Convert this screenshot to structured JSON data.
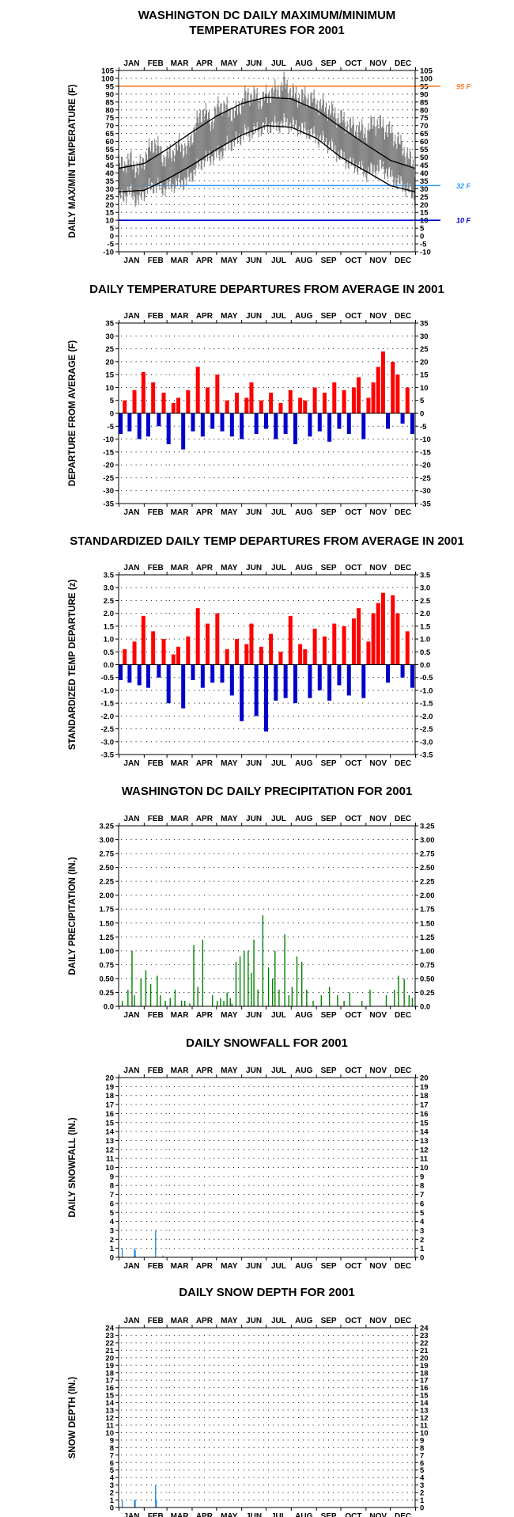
{
  "months": [
    "JAN",
    "FEB",
    "MAR",
    "APR",
    "MAY",
    "JUN",
    "JUL",
    "AUG",
    "SEP",
    "OCT",
    "NOV",
    "DEC"
  ],
  "colors": {
    "ref95": "#ff7f27",
    "ref32": "#3399ff",
    "ref10": "#0000cc",
    "temp_band": "#808080",
    "avg_line": "#000000",
    "positive": "#ff0000",
    "negative": "#0000cc",
    "precip": "#008000",
    "snow": "#2b8fe0"
  },
  "chart_data": [
    {
      "id": "temps",
      "type": "area",
      "title": [
        "WASHINGTON DC DAILY MAXIMUM/MINIMUM",
        "TEMPERATURES FOR 2001"
      ],
      "ylabel": "DAILY MAX/MIN TEMPERATURE (F)",
      "ylim": [
        -10,
        105
      ],
      "yticks": [
        -10,
        -5,
        0,
        5,
        10,
        15,
        20,
        25,
        30,
        35,
        40,
        45,
        50,
        55,
        60,
        65,
        70,
        75,
        80,
        85,
        90,
        95,
        100,
        105
      ],
      "grid": true,
      "reference_lines": [
        {
          "value": 95,
          "label": "95 F",
          "color_key": "ref95"
        },
        {
          "value": 32,
          "label": "32 F",
          "color_key": "ref32"
        },
        {
          "value": 10,
          "label": "10 F",
          "color_key": "ref10"
        }
      ],
      "normal_high": {
        "name": "",
        "day": [
          1,
          32,
          60,
          91,
          121,
          152,
          182,
          213,
          244,
          274,
          305,
          335,
          365
        ],
        "values": [
          43,
          46,
          55,
          66,
          76,
          84,
          88,
          87,
          80,
          69,
          58,
          48,
          43
        ]
      },
      "normal_low": {
        "name": "",
        "day": [
          1,
          32,
          60,
          91,
          121,
          152,
          182,
          213,
          244,
          274,
          305,
          335,
          365
        ],
        "values": [
          28,
          29,
          36,
          45,
          55,
          64,
          70,
          69,
          62,
          50,
          41,
          32,
          28
        ]
      },
      "daily_high_approx": {
        "day": [
          5,
          15,
          25,
          35,
          45,
          55,
          65,
          75,
          85,
          95,
          105,
          115,
          125,
          135,
          145,
          155,
          165,
          175,
          185,
          195,
          205,
          215,
          225,
          235,
          245,
          255,
          265,
          275,
          285,
          295,
          305,
          315,
          325,
          335,
          345,
          355,
          364
        ],
        "values": [
          45,
          48,
          42,
          52,
          60,
          50,
          52,
          58,
          55,
          70,
          80,
          72,
          84,
          80,
          78,
          88,
          90,
          86,
          90,
          92,
          97,
          90,
          88,
          88,
          84,
          82,
          78,
          74,
          70,
          68,
          66,
          72,
          70,
          66,
          60,
          52,
          45
        ]
      },
      "daily_low_approx": {
        "day": [
          5,
          15,
          25,
          35,
          45,
          55,
          65,
          75,
          85,
          95,
          105,
          115,
          125,
          135,
          145,
          155,
          165,
          175,
          185,
          195,
          205,
          215,
          225,
          235,
          245,
          255,
          265,
          275,
          285,
          295,
          305,
          315,
          325,
          335,
          345,
          355,
          364
        ],
        "values": [
          25,
          28,
          22,
          30,
          32,
          30,
          32,
          34,
          35,
          42,
          48,
          50,
          52,
          58,
          60,
          65,
          66,
          68,
          70,
          70,
          72,
          70,
          68,
          66,
          62,
          60,
          55,
          50,
          46,
          44,
          40,
          42,
          44,
          38,
          34,
          30,
          25
        ]
      }
    },
    {
      "id": "departures",
      "type": "bar",
      "title": [
        "DAILY TEMPERATURE DEPARTURES FROM AVERAGE IN 2001"
      ],
      "ylabel": "DEPARTURE FROM AVERAGE (F)",
      "ylim": [
        -35,
        35
      ],
      "yticks": [
        -35,
        -30,
        -25,
        -20,
        -15,
        -10,
        -5,
        0,
        5,
        10,
        15,
        20,
        25,
        30,
        35
      ],
      "grid": true,
      "day": [
        3,
        8,
        14,
        20,
        26,
        31,
        37,
        43,
        50,
        56,
        62,
        68,
        74,
        80,
        86,
        92,
        98,
        104,
        110,
        116,
        122,
        128,
        134,
        140,
        146,
        152,
        158,
        164,
        170,
        176,
        182,
        188,
        194,
        200,
        206,
        212,
        218,
        224,
        230,
        236,
        242,
        248,
        254,
        260,
        266,
        272,
        278,
        284,
        290,
        296,
        302,
        308,
        314,
        320,
        326,
        332,
        338,
        344,
        350,
        356,
        362
      ],
      "values": [
        -8,
        5,
        -7,
        9,
        -10,
        16,
        -9,
        12,
        -5,
        8,
        -12,
        4,
        6,
        -14,
        9,
        -7,
        18,
        -9,
        10,
        -6,
        15,
        -7,
        5,
        -9,
        8,
        -10,
        6,
        12,
        -8,
        5,
        -6,
        8,
        -10,
        4,
        -8,
        9,
        -12,
        6,
        5,
        -9,
        10,
        -7,
        8,
        -11,
        12,
        -6,
        9,
        -8,
        10,
        14,
        -10,
        6,
        12,
        18,
        24,
        -6,
        20,
        15,
        -4,
        10,
        -8
      ]
    },
    {
      "id": "std_departures",
      "type": "bar",
      "title": [
        "STANDARDIZED DAILY TEMP DEPARTURES FROM AVERAGE IN 2001"
      ],
      "ylabel": "STANDARDIZED TEMP DEPARTURE (z)",
      "ylim": [
        -3.5,
        3.5
      ],
      "yticks": [
        -3.5,
        -3.0,
        -2.5,
        -2.0,
        -1.5,
        -1.0,
        -0.5,
        0.0,
        0.5,
        1.0,
        1.5,
        2.0,
        2.5,
        3.0,
        3.5
      ],
      "grid": true,
      "day": [
        3,
        8,
        14,
        20,
        26,
        31,
        37,
        43,
        50,
        56,
        62,
        68,
        74,
        80,
        86,
        92,
        98,
        104,
        110,
        116,
        122,
        128,
        134,
        140,
        146,
        152,
        158,
        164,
        170,
        176,
        182,
        188,
        194,
        200,
        206,
        212,
        218,
        224,
        230,
        236,
        242,
        248,
        254,
        260,
        266,
        272,
        278,
        284,
        290,
        296,
        302,
        308,
        314,
        320,
        326,
        332,
        338,
        344,
        350,
        356,
        362
      ],
      "values": [
        -0.6,
        0.6,
        -0.7,
        0.9,
        -0.8,
        1.9,
        -0.9,
        1.3,
        -0.5,
        1.0,
        -1.5,
        0.4,
        0.7,
        -1.7,
        1.1,
        -0.6,
        2.2,
        -0.9,
        1.6,
        -0.7,
        2.0,
        -0.7,
        0.6,
        -1.2,
        1.0,
        -2.2,
        0.8,
        1.6,
        -2.0,
        0.7,
        -2.6,
        1.2,
        -1.4,
        0.5,
        -1.3,
        1.9,
        -1.5,
        0.8,
        0.6,
        -1.3,
        1.4,
        -1.0,
        1.1,
        -1.4,
        1.6,
        -0.8,
        1.5,
        -1.2,
        1.8,
        2.2,
        -1.3,
        0.9,
        2.0,
        2.4,
        2.8,
        -0.7,
        2.7,
        2.0,
        -0.5,
        1.3,
        -0.9
      ]
    },
    {
      "id": "precip",
      "type": "bar",
      "title": [
        "WASHINGTON DC DAILY PRECIPITATION FOR 2001"
      ],
      "ylabel": "DAILY PRECIPITATION (IN.)",
      "ylim": [
        0,
        3.25
      ],
      "yticks": [
        0.0,
        0.25,
        0.5,
        0.75,
        1.0,
        1.25,
        1.5,
        1.75,
        2.0,
        2.25,
        2.5,
        2.75,
        3.0,
        3.25
      ],
      "yticklabels": [
        "0.0",
        "0.25",
        "0.50",
        "0.75",
        "1.00",
        "1.25",
        "1.50",
        "1.75",
        "2.00",
        "2.25",
        "2.50",
        "2.75",
        "3.00",
        "3.25"
      ],
      "grid": true,
      "day": [
        5,
        12,
        17,
        20,
        28,
        34,
        40,
        48,
        52,
        58,
        64,
        70,
        78,
        82,
        88,
        93,
        98,
        104,
        116,
        122,
        126,
        130,
        134,
        138,
        140,
        145,
        150,
        155,
        160,
        164,
        167,
        172,
        178,
        185,
        190,
        193,
        198,
        205,
        210,
        214,
        220,
        226,
        232,
        240,
        250,
        260,
        270,
        278,
        285,
        300,
        310,
        330,
        340,
        345,
        352,
        358,
        362
      ],
      "values": [
        0.1,
        0.3,
        1.0,
        0.2,
        0.5,
        0.65,
        0.4,
        0.55,
        0.2,
        0.1,
        0.15,
        0.3,
        0.1,
        0.1,
        0.05,
        1.1,
        0.35,
        1.2,
        0.2,
        0.1,
        0.15,
        0.1,
        0.25,
        0.15,
        0.05,
        0.8,
        0.9,
        1.0,
        1.0,
        0.6,
        1.2,
        0.3,
        1.64,
        0.7,
        0.5,
        1.0,
        0.3,
        1.3,
        0.2,
        0.35,
        0.9,
        0.8,
        0.3,
        0.1,
        0.2,
        0.35,
        0.2,
        0.1,
        0.25,
        0.1,
        0.3,
        0.2,
        0.3,
        0.55,
        0.5,
        0.2,
        0.15
      ]
    },
    {
      "id": "snowfall",
      "type": "bar",
      "title": [
        "DAILY SNOWFALL FOR 2001"
      ],
      "ylabel": "DAILY SNOWFALL (IN.)",
      "ylim": [
        0,
        20
      ],
      "yticks": [
        0,
        1,
        2,
        3,
        4,
        5,
        6,
        7,
        8,
        9,
        10,
        11,
        12,
        13,
        14,
        15,
        16,
        17,
        18,
        19,
        20
      ],
      "grid": true,
      "day": [
        5,
        20,
        21,
        46,
        55
      ],
      "values": [
        1.0,
        1.0,
        0.8,
        3.0,
        0.2
      ]
    },
    {
      "id": "snowdepth",
      "type": "bar",
      "title": [
        "DAILY SNOW DEPTH FOR 2001"
      ],
      "ylabel": "SNOW DEPTH (IN.)",
      "ylim": [
        0,
        24
      ],
      "yticks": [
        0,
        1,
        2,
        3,
        4,
        5,
        6,
        7,
        8,
        9,
        10,
        11,
        12,
        13,
        14,
        15,
        16,
        17,
        18,
        19,
        20,
        21,
        22,
        23,
        24
      ],
      "grid": true,
      "day": [
        5,
        20,
        21,
        46,
        47
      ],
      "values": [
        1.0,
        1.0,
        1.0,
        3.0,
        1.0
      ]
    }
  ]
}
